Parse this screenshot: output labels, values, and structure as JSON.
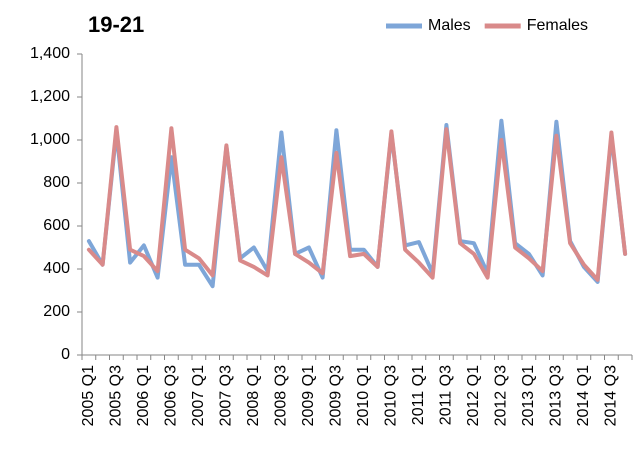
{
  "chart_data": {
    "type": "line",
    "title": "19-21",
    "categories": [
      "2005 Q1",
      null,
      "2005 Q3",
      null,
      "2006 Q1",
      null,
      "2006 Q3",
      null,
      "2007 Q1",
      null,
      "2007 Q3",
      null,
      "2008 Q1",
      null,
      "2008 Q3",
      null,
      "2009 Q1",
      null,
      "2009 Q3",
      null,
      "2010 Q1",
      null,
      "2010 Q3",
      null,
      "2011 Q1",
      null,
      "2011 Q3",
      null,
      "2012 Q1",
      null,
      "2012 Q3",
      null,
      "2013 Q1",
      null,
      "2013 Q3",
      null,
      "2014 Q1",
      null,
      "2014 Q3",
      null
    ],
    "series": [
      {
        "name": "Males",
        "color": "#7ea6d8",
        "values": [
          530,
          420,
          1040,
          430,
          510,
          360,
          920,
          420,
          420,
          320,
          970,
          450,
          500,
          390,
          1035,
          470,
          500,
          360,
          1045,
          490,
          490,
          410,
          1030,
          510,
          525,
          380,
          1070,
          530,
          520,
          380,
          1090,
          520,
          470,
          370,
          1085,
          530,
          410,
          340,
          1020,
          470
        ]
      },
      {
        "name": "Females",
        "color": "#d98a8a",
        "values": [
          490,
          420,
          1060,
          490,
          460,
          390,
          1055,
          490,
          450,
          370,
          975,
          440,
          410,
          370,
          920,
          470,
          430,
          380,
          940,
          460,
          470,
          410,
          1040,
          490,
          430,
          360,
          1050,
          520,
          470,
          360,
          1000,
          500,
          450,
          390,
          1020,
          520,
          420,
          350,
          1035,
          470
        ]
      }
    ],
    "ylim": [
      0,
      1400
    ],
    "yticks": [
      0,
      200,
      400,
      600,
      800,
      {
        "value": 1000,
        "label": "1,000"
      },
      {
        "value": 1200,
        "label": "1,200"
      },
      {
        "value": 1400,
        "label": "1,400"
      }
    ],
    "legend": "top-right"
  }
}
